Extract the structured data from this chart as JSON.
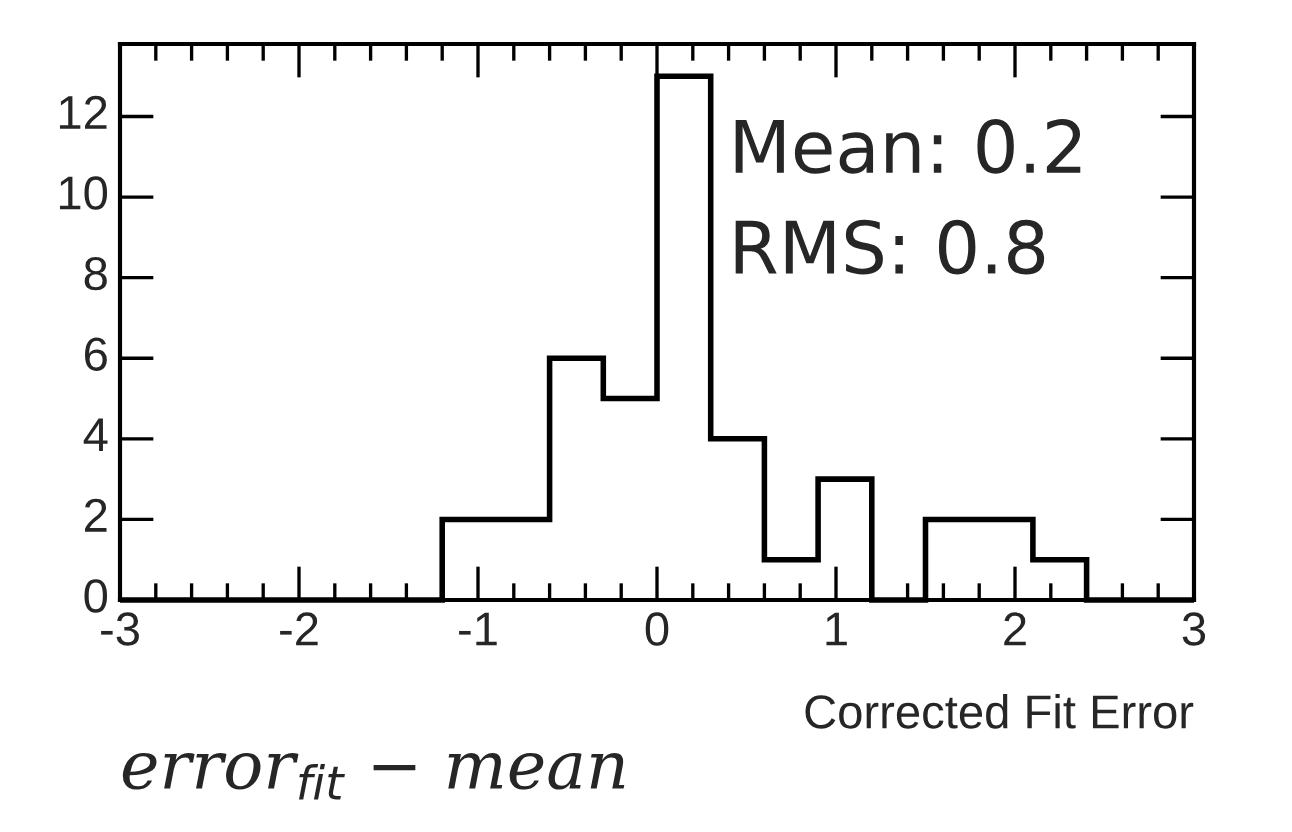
{
  "chart_data": {
    "type": "histogram",
    "bins": [
      -3,
      -2.7,
      -2.4,
      -2.1,
      -1.8,
      -1.5,
      -1.2,
      -0.9,
      -0.6,
      -0.3,
      0,
      0.3,
      0.6,
      0.9,
      1.2,
      1.5,
      1.8,
      2.1,
      2.4,
      2.7,
      3
    ],
    "values": [
      0,
      0,
      0,
      0,
      0,
      0,
      2,
      2,
      6,
      5,
      13,
      4,
      1,
      3,
      0,
      2,
      2,
      1,
      0,
      0
    ],
    "color": "#000000",
    "xlim": [
      -3,
      3
    ],
    "xticks": [
      -3,
      -2,
      -1,
      0,
      1,
      2,
      3
    ],
    "ylim": [
      0,
      13.8
    ],
    "yticks": [
      0,
      2,
      4,
      6,
      8,
      10,
      12
    ],
    "xlabel": "Corrected Fit Error",
    "annotations": [
      "Mean: 0.2",
      "RMS: 0.8",
      "error$_{fit}$ − mean"
    ],
    "grid": false,
    "legend": false
  }
}
